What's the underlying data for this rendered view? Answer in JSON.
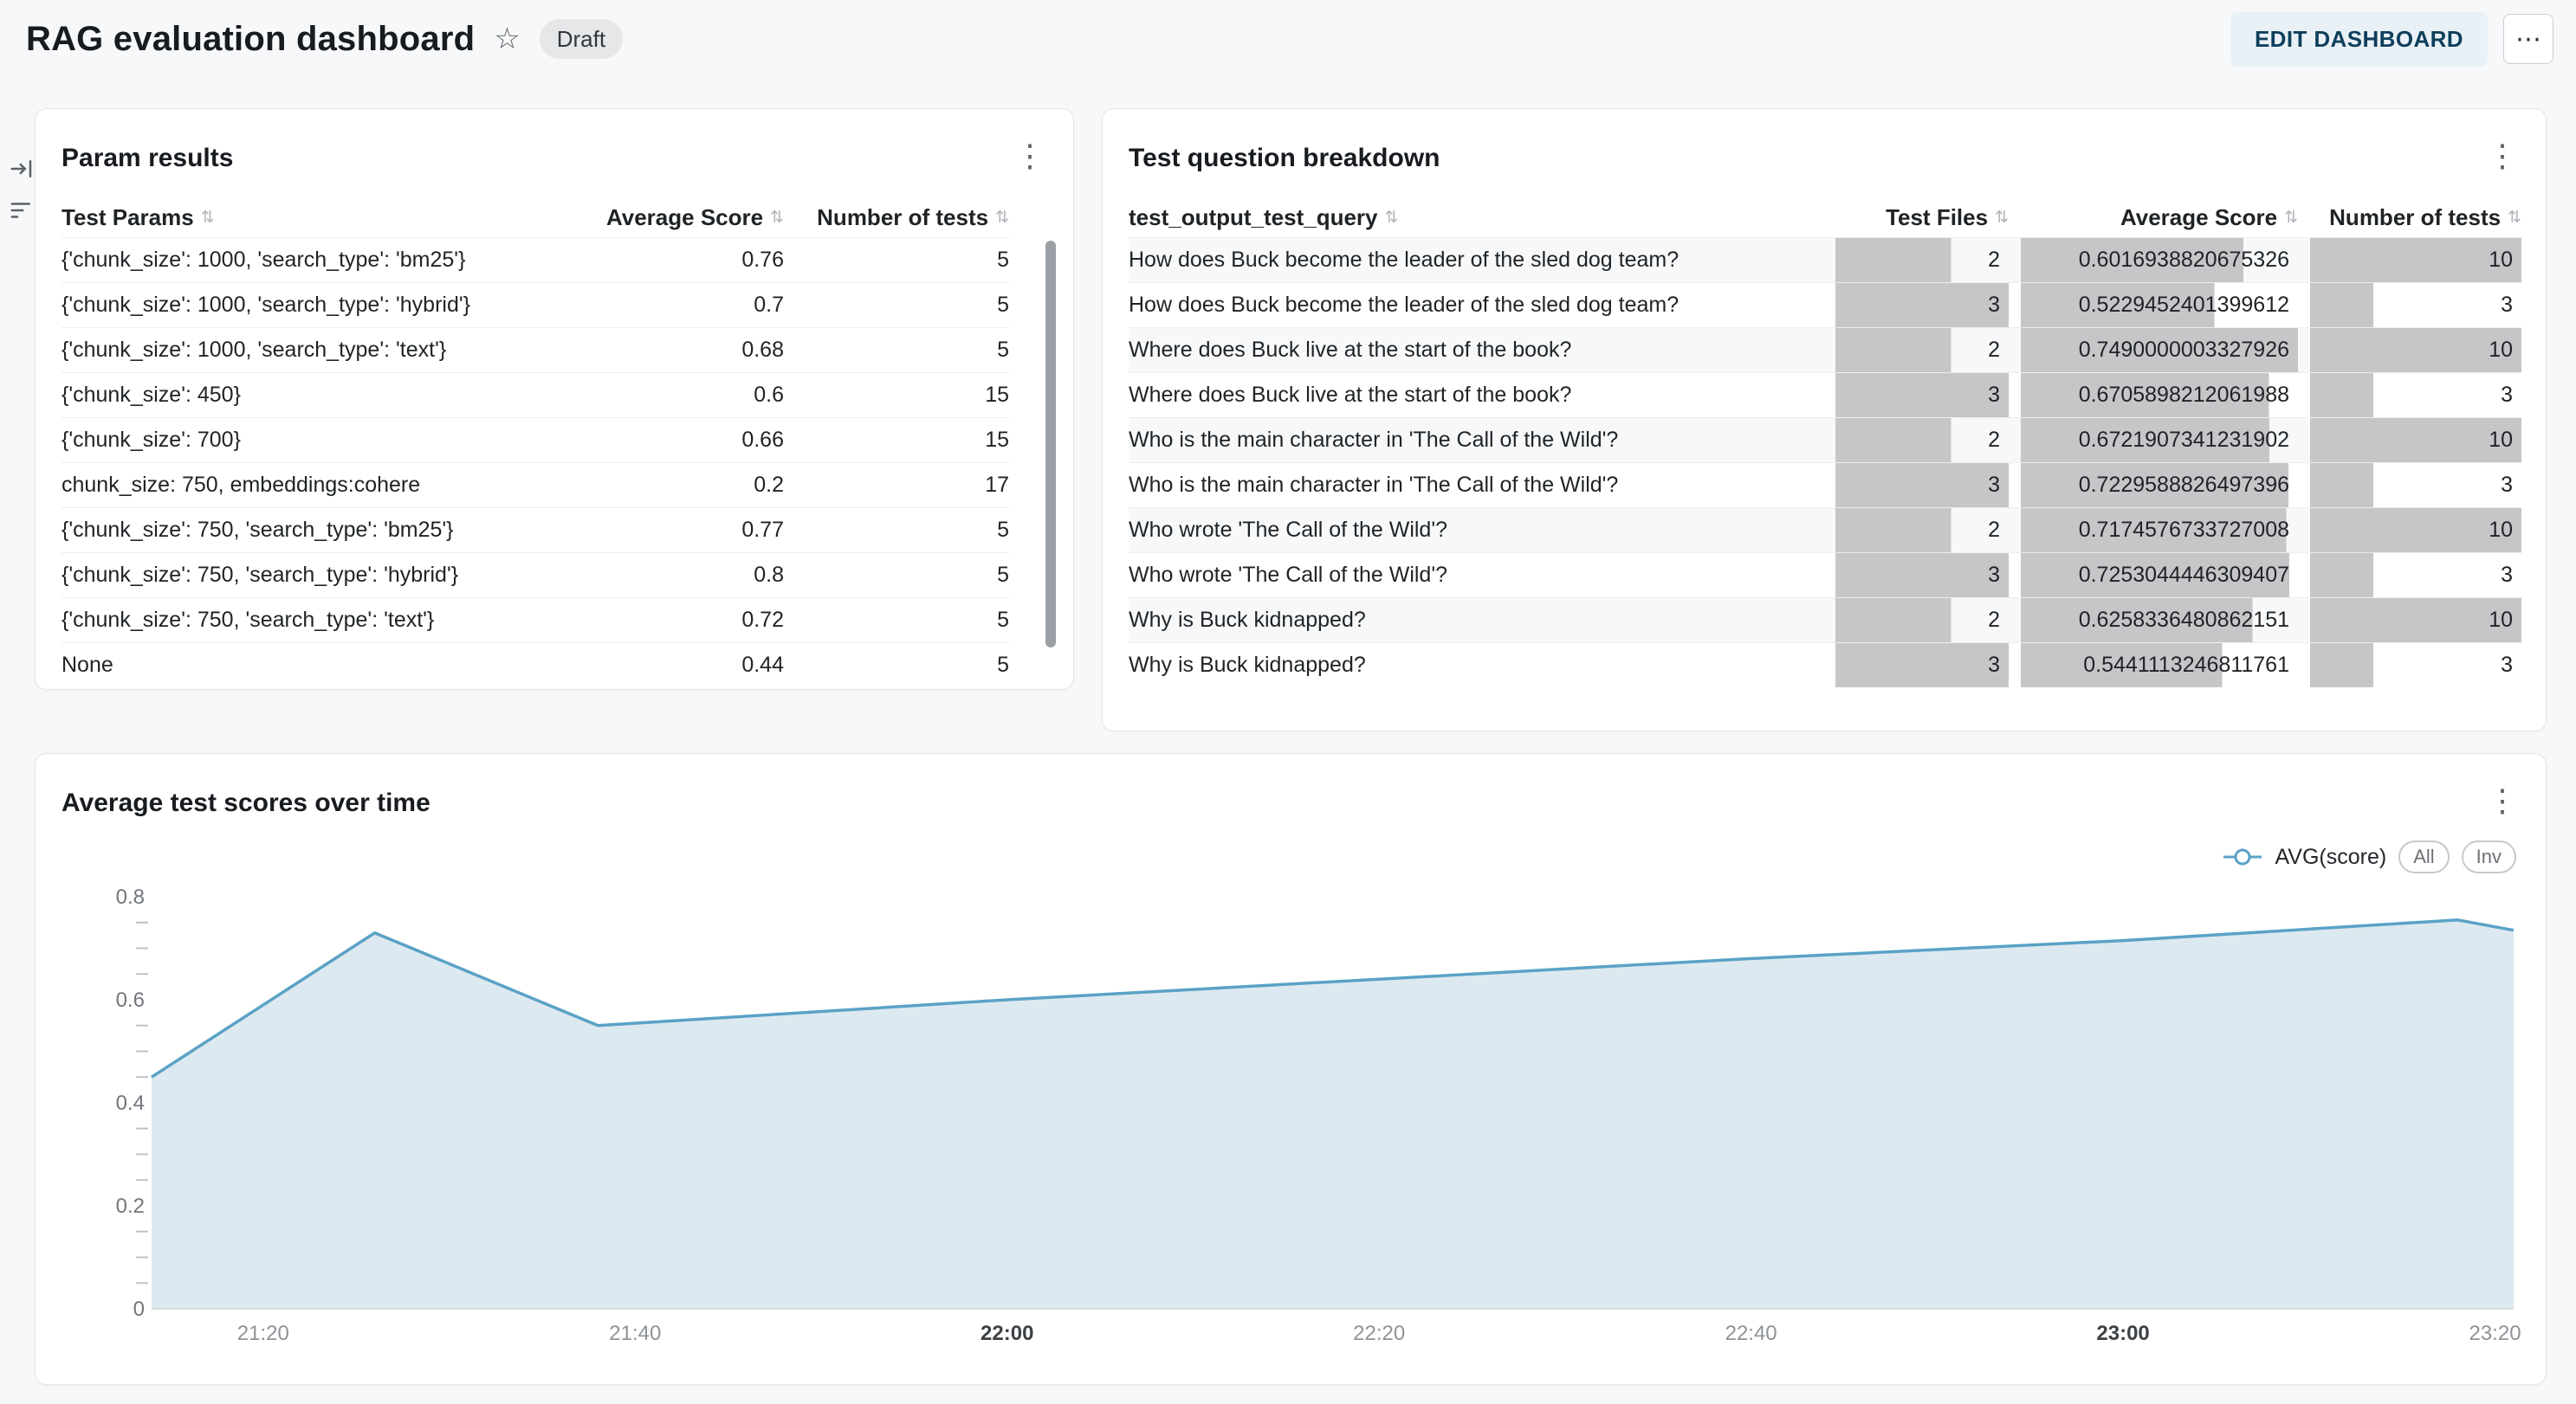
{
  "header": {
    "title": "RAG evaluation dashboard",
    "status_badge": "Draft",
    "edit_button": "EDIT DASHBOARD"
  },
  "icons": {
    "star": "☆",
    "kebab": "⋮",
    "ellipsis": "⋯",
    "sort": "⇅",
    "collapse_panel": "collapse-right-icon",
    "filter": "filter-lines-icon"
  },
  "param_results": {
    "title": "Param results",
    "columns": [
      {
        "label": "Test Params",
        "align": "left"
      },
      {
        "label": "Average Score",
        "align": "right"
      },
      {
        "label": "Number of tests",
        "align": "right"
      }
    ],
    "rows": [
      {
        "params": "{'chunk_size': 1000, 'search_type': 'bm25'}",
        "avg_score": "0.76",
        "num_tests": "5"
      },
      {
        "params": "{'chunk_size': 1000, 'search_type': 'hybrid'}",
        "avg_score": "0.7",
        "num_tests": "5"
      },
      {
        "params": "{'chunk_size': 1000, 'search_type': 'text'}",
        "avg_score": "0.68",
        "num_tests": "5"
      },
      {
        "params": "{'chunk_size': 450}",
        "avg_score": "0.6",
        "num_tests": "15"
      },
      {
        "params": "{'chunk_size': 700}",
        "avg_score": "0.66",
        "num_tests": "15"
      },
      {
        "params": "chunk_size: 750, embeddings:cohere",
        "avg_score": "0.2",
        "num_tests": "17"
      },
      {
        "params": "{'chunk_size': 750, 'search_type': 'bm25'}",
        "avg_score": "0.77",
        "num_tests": "5"
      },
      {
        "params": "{'chunk_size': 750, 'search_type': 'hybrid'}",
        "avg_score": "0.8",
        "num_tests": "5"
      },
      {
        "params": "{'chunk_size': 750, 'search_type': 'text'}",
        "avg_score": "0.72",
        "num_tests": "5"
      },
      {
        "params": "None",
        "avg_score": "0.44",
        "num_tests": "5"
      }
    ]
  },
  "question_breakdown": {
    "title": "Test question breakdown",
    "bar_color": "#c6c6c8",
    "columns": [
      {
        "label": "test_output_test_query",
        "align": "left"
      },
      {
        "label": "Test Files",
        "align": "right"
      },
      {
        "label": "Average Score",
        "align": "right"
      },
      {
        "label": "Number of tests",
        "align": "right"
      }
    ],
    "rows": [
      {
        "query": "How does Buck become the leader of the sled dog team?",
        "test_files": 2,
        "avg_score": "0.6016938820675326",
        "num_tests": 10
      },
      {
        "query": "How does Buck become the leader of the sled dog team?",
        "test_files": 3,
        "avg_score": "0.5229452401399612",
        "num_tests": 3
      },
      {
        "query": "Where does Buck live at the start of the book?",
        "test_files": 2,
        "avg_score": "0.7490000003327926",
        "num_tests": 10
      },
      {
        "query": "Where does Buck live at the start of the book?",
        "test_files": 3,
        "avg_score": "0.6705898212061988",
        "num_tests": 3
      },
      {
        "query": "Who is the main character in 'The Call of the Wild'?",
        "test_files": 2,
        "avg_score": "0.6721907341231902",
        "num_tests": 10
      },
      {
        "query": "Who is the main character in 'The Call of the Wild'?",
        "test_files": 3,
        "avg_score": "0.7229588826497396",
        "num_tests": 3
      },
      {
        "query": "Who wrote 'The Call of the Wild'?",
        "test_files": 2,
        "avg_score": "0.7174576733727008",
        "num_tests": 10
      },
      {
        "query": "Who wrote 'The Call of the Wild'?",
        "test_files": 3,
        "avg_score": "0.7253044446309407",
        "num_tests": 3
      },
      {
        "query": "Why is Buck kidnapped?",
        "test_files": 2,
        "avg_score": "0.6258336480862151",
        "num_tests": 10
      },
      {
        "query": "Why is Buck kidnapped?",
        "test_files": 3,
        "avg_score": "0.5441113246811761",
        "num_tests": 3
      }
    ]
  },
  "chart_data": {
    "type": "area",
    "title": "Average test scores over time",
    "legend": {
      "label": "AVG(score)",
      "buttons": [
        "All",
        "Inv"
      ]
    },
    "line_color": "#5aa2c6",
    "fill_color": "#dde9f0",
    "x_domain": [
      "21:14",
      "23:21"
    ],
    "ylim": [
      0,
      0.8
    ],
    "y_major_ticks": [
      0,
      0.2,
      0.4,
      0.6,
      0.8
    ],
    "y_minor_step": 0.05,
    "x_ticks": [
      {
        "label": "21:20",
        "bold": false
      },
      {
        "label": "21:40",
        "bold": false
      },
      {
        "label": "22:00",
        "bold": true
      },
      {
        "label": "22:20",
        "bold": false
      },
      {
        "label": "22:40",
        "bold": false
      },
      {
        "label": "23:00",
        "bold": true
      },
      {
        "label": "23:20",
        "bold": false
      }
    ],
    "series": [
      {
        "name": "AVG(score)",
        "points": [
          {
            "time": "21:14",
            "value": 0.45
          },
          {
            "time": "21:26",
            "value": 0.73
          },
          {
            "time": "21:38",
            "value": 0.55
          },
          {
            "time": "22:00",
            "value": 0.6
          },
          {
            "time": "22:20",
            "value": 0.64
          },
          {
            "time": "22:40",
            "value": 0.68
          },
          {
            "time": "23:00",
            "value": 0.715
          },
          {
            "time": "23:18",
            "value": 0.755
          },
          {
            "time": "23:21",
            "value": 0.735
          }
        ]
      }
    ]
  }
}
